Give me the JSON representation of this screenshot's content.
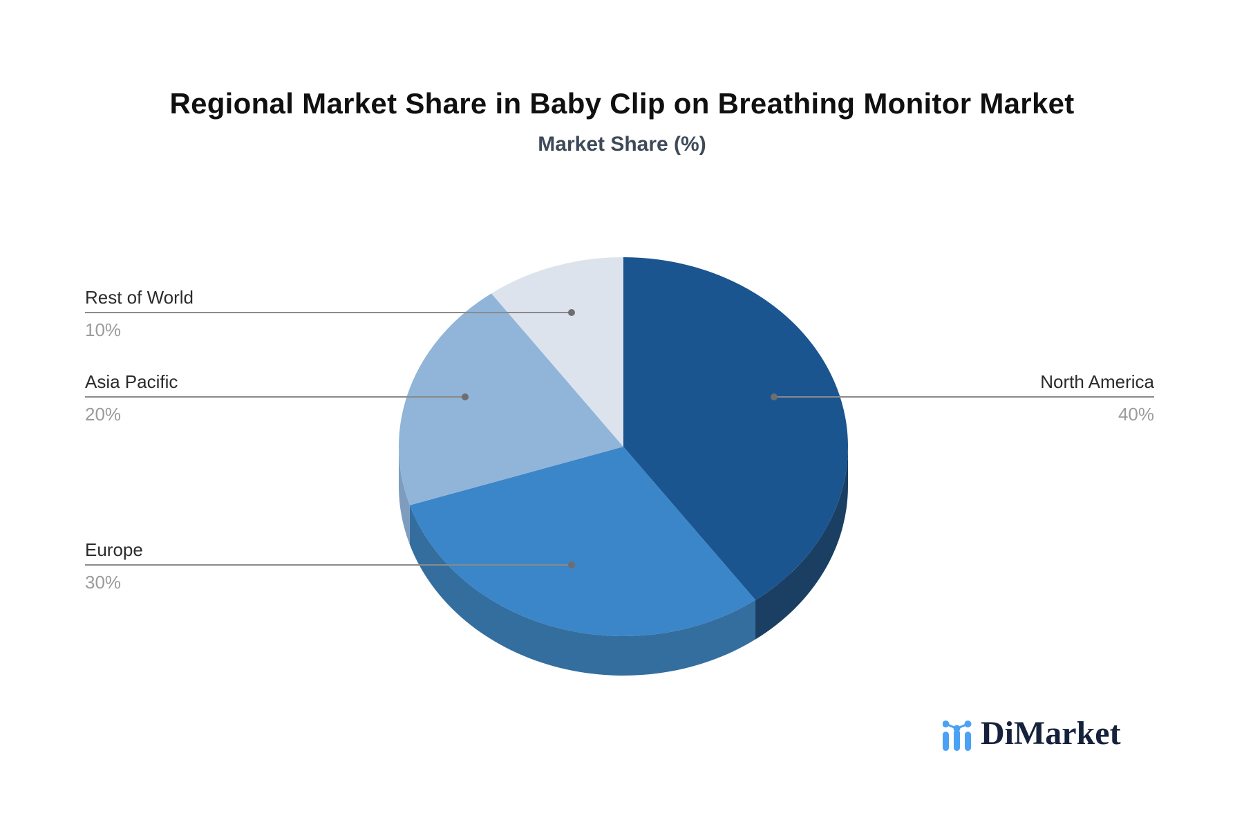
{
  "chart_data": {
    "type": "pie",
    "title": "Regional Market Share in Baby Clip on Breathing Monitor Market",
    "subtitle": "Market Share (%)",
    "unit": "%",
    "style": "3d",
    "start_angle": "12-oclock",
    "direction": "clockwise",
    "legend_position": "none",
    "connector_color": "#8A8A8A",
    "connector_dot_color": "#6E6E6E",
    "slices": [
      {
        "label": "North America",
        "value": 40,
        "display_value": "40%",
        "color": "#1A5590",
        "depth_color": "#1A3F63",
        "label_side": "right"
      },
      {
        "label": "Europe",
        "value": 30,
        "display_value": "30%",
        "color": "#3A86C8",
        "depth_color": "#336E9F",
        "label_side": "left"
      },
      {
        "label": "Asia Pacific",
        "value": 20,
        "display_value": "20%",
        "color": "#91B4D9",
        "depth_color": "#7E9CBE",
        "label_side": "left"
      },
      {
        "label": "Rest of World",
        "value": 10,
        "display_value": "10%",
        "color": "#DCE3ED",
        "depth_color": "#C2CBD9",
        "label_side": "left"
      }
    ]
  },
  "branding": {
    "logo_text": "DiMarket",
    "logo_icon": "bar-chart-logo-icon",
    "logo_icon_color": "#4BA1F3",
    "logo_text_color": "#16223C"
  },
  "colors": {
    "background": "#FFFFFF",
    "title": "#101010",
    "subtitle": "#3E4A59",
    "slice_label": "#2B2B2B",
    "slice_value": "#9B9B9B"
  }
}
